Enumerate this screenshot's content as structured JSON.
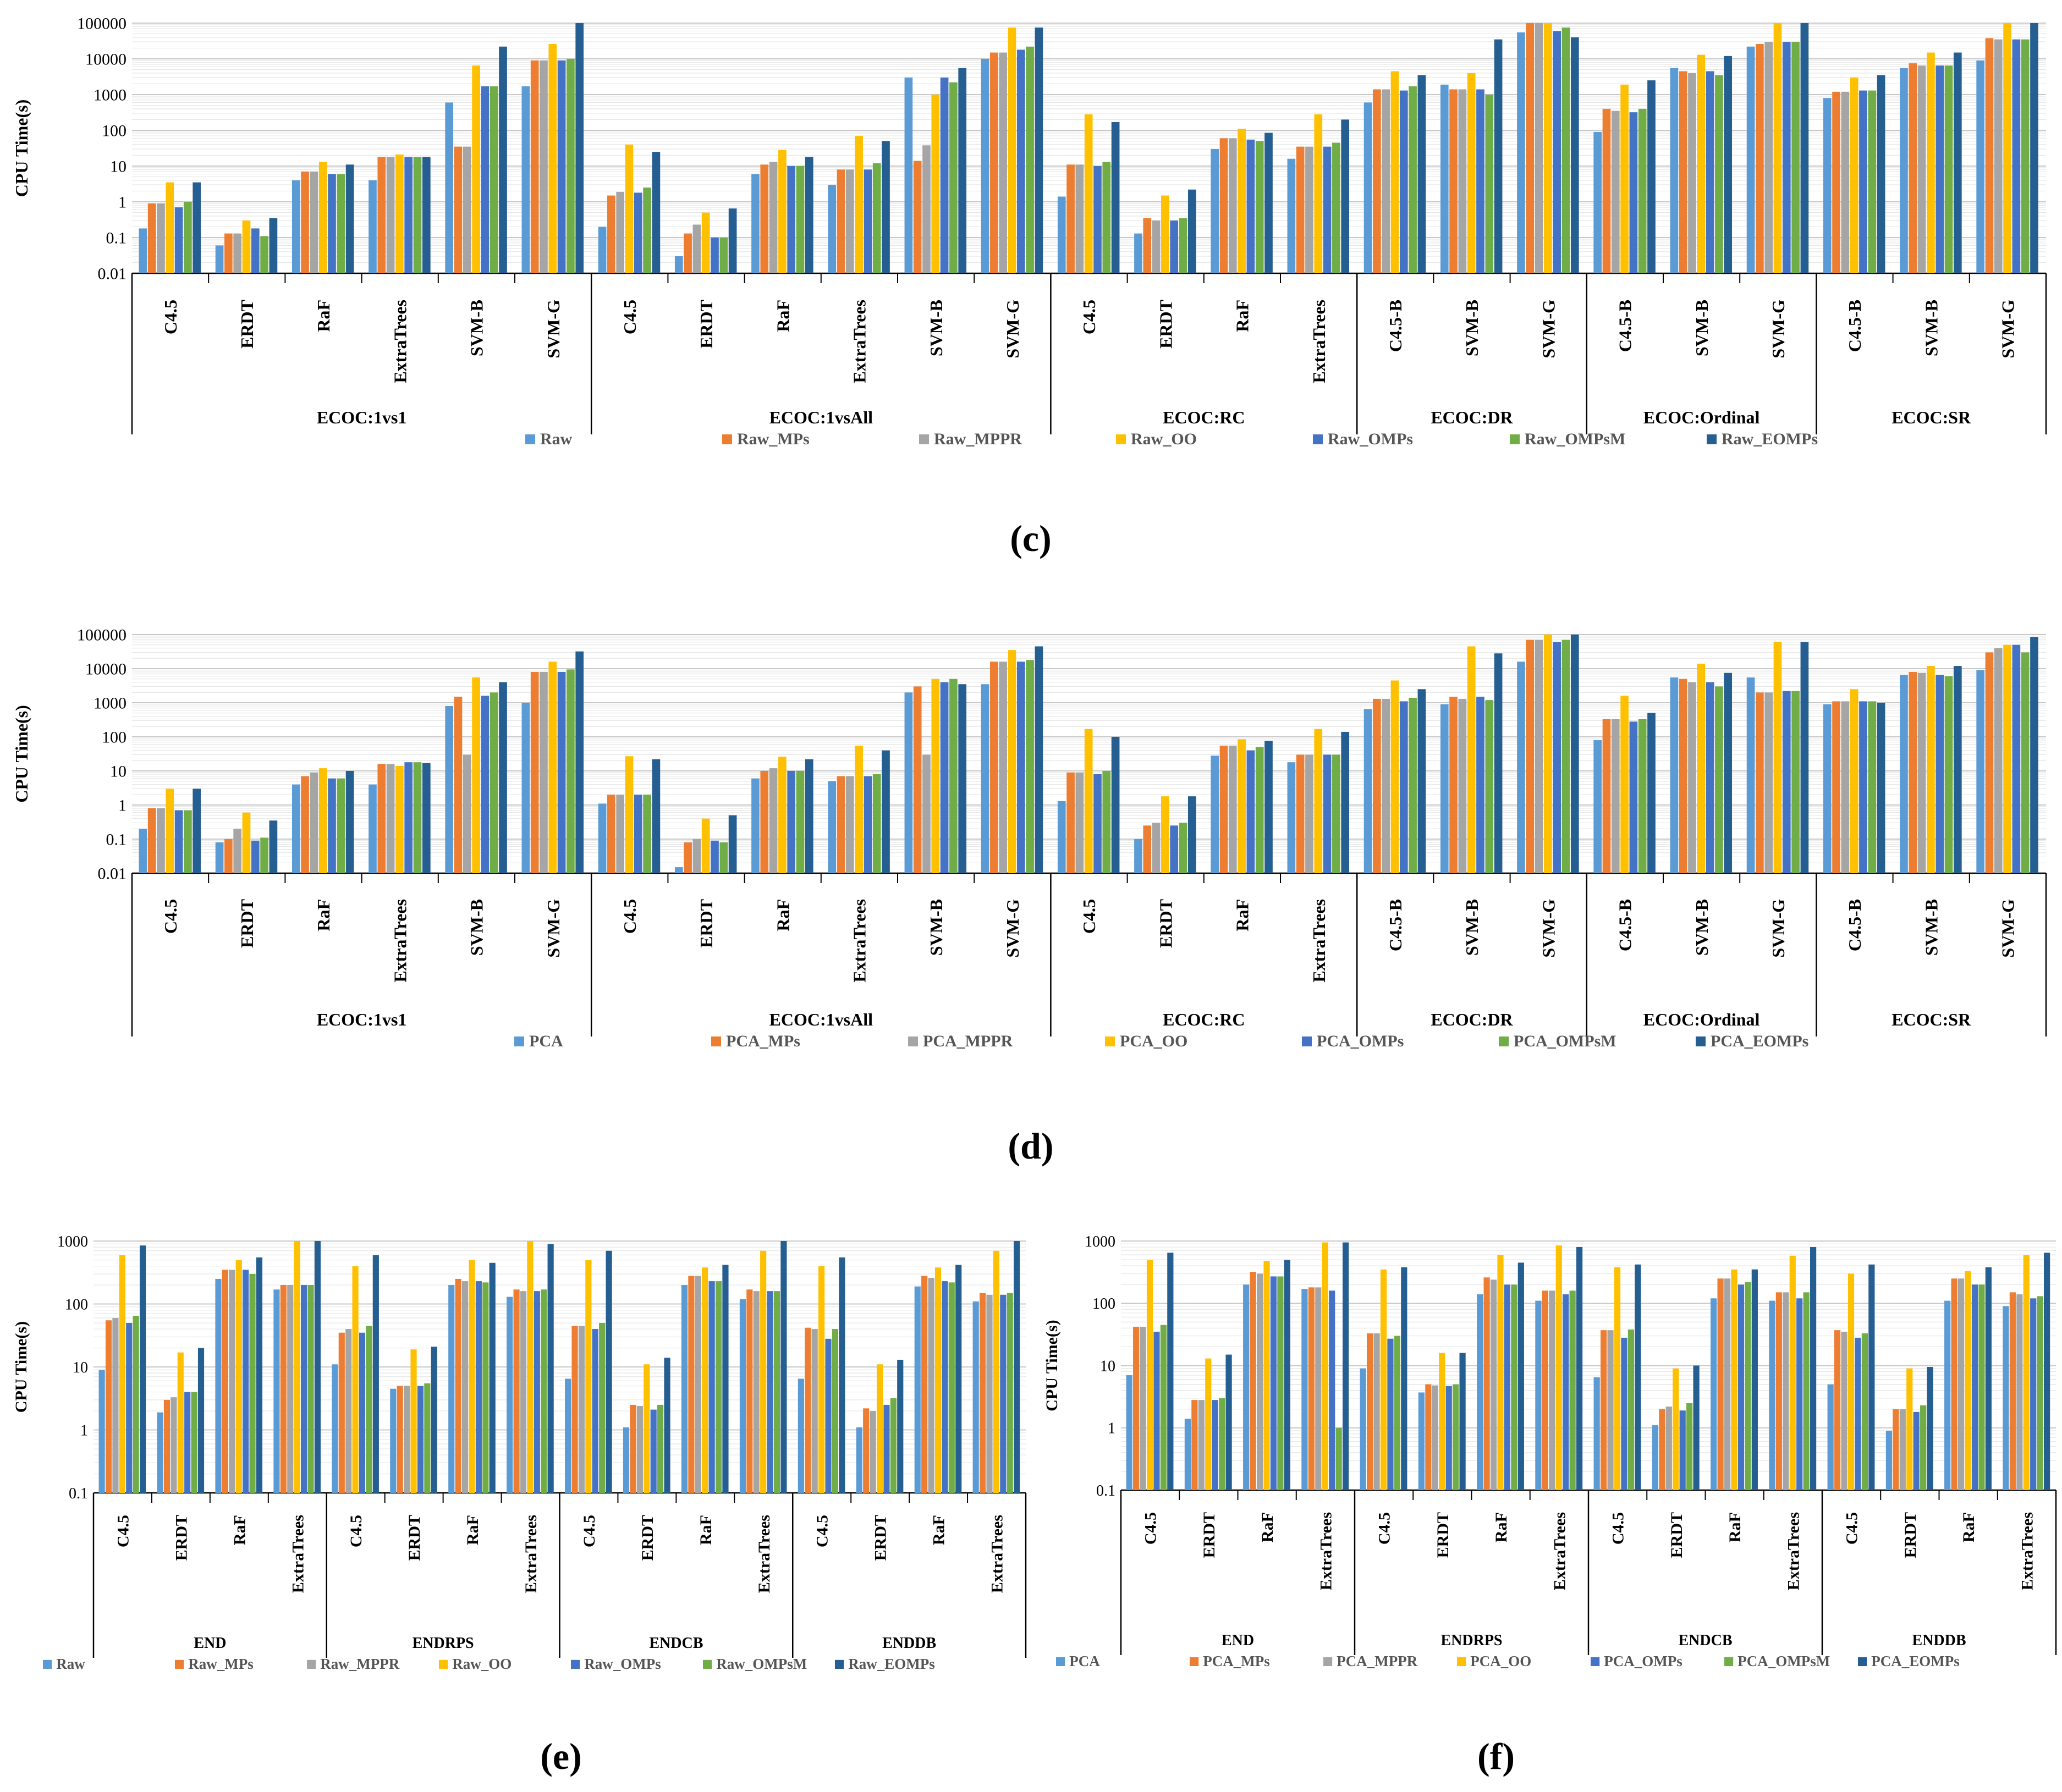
{
  "colors": {
    "Raw": "#5B9BD5",
    "Raw_MPs": "#ED7D31",
    "Raw_MPPR": "#A5A5A5",
    "Raw_OO": "#FFC000",
    "Raw_OMPs": "#4472C4",
    "Raw_OMPsM": "#70AD47",
    "Raw_EOMPs": "#255E91",
    "PCA": "#5B9BD5",
    "PCA_MPs": "#ED7D31",
    "PCA_MPPR": "#A5A5A5",
    "PCA_OO": "#FFC000",
    "PCA_OMPs": "#4472C4",
    "PCA_OMPsM": "#70AD47",
    "PCA_EOMPs": "#255E91"
  },
  "chart_data": [
    {
      "panel": "c",
      "type": "bar",
      "yscale": "log",
      "ylabel": "CPU Time(s)",
      "ylim": [
        0.01,
        100000
      ],
      "yticks": [
        "0.01",
        "0.1",
        "1",
        "10",
        "100",
        "1000",
        "10000",
        "100000"
      ],
      "groups": [
        {
          "label": "ECOC:1vs1",
          "categories": [
            "C4.5",
            "ERDT",
            "RaF",
            "ExtraTrees",
            "SVM-B",
            "SVM-G"
          ]
        },
        {
          "label": "ECOC:1vsAll",
          "categories": [
            "C4.5",
            "ERDT",
            "RaF",
            "ExtraTrees",
            "SVM-B",
            "SVM-G"
          ]
        },
        {
          "label": "ECOC:RC",
          "categories": [
            "C4.5",
            "ERDT",
            "RaF",
            "ExtraTrees"
          ]
        },
        {
          "label": "ECOC:DR",
          "categories": [
            "C4.5-B",
            "SVM-B",
            "SVM-G"
          ]
        },
        {
          "label": "ECOC:Ordinal",
          "categories": [
            "C4.5-B",
            "SVM-B",
            "SVM-G"
          ]
        },
        {
          "label": "ECOC:SR",
          "categories": [
            "C4.5-B",
            "SVM-B",
            "SVM-G"
          ]
        }
      ],
      "legend": [
        "Raw",
        "Raw_MPs",
        "Raw_MPPR",
        "Raw_OO",
        "Raw_OMPs",
        "Raw_OMPsM",
        "Raw_EOMPs"
      ],
      "values": [
        [
          0.18,
          0.9,
          0.9,
          3.5,
          0.7,
          1.0,
          3.5
        ],
        [
          0.06,
          0.13,
          0.13,
          0.3,
          0.18,
          0.11,
          0.35
        ],
        [
          4,
          7,
          7,
          13,
          6,
          6,
          11
        ],
        [
          4,
          18,
          18,
          21,
          18,
          18,
          18
        ],
        [
          600,
          35,
          35,
          6500,
          1700,
          1700,
          22000
        ],
        [
          1700,
          9000,
          9000,
          26000,
          9000,
          10000,
          100000
        ],
        [
          0.2,
          1.5,
          1.9,
          40,
          1.8,
          2.5,
          25
        ],
        [
          0.03,
          0.13,
          0.23,
          0.5,
          0.1,
          0.1,
          0.65
        ],
        [
          6,
          11,
          13,
          28,
          10,
          10,
          18
        ],
        [
          3,
          8,
          8,
          70,
          8,
          12,
          50
        ],
        [
          3000,
          14,
          38,
          1000,
          3000,
          2200,
          5500
        ],
        [
          10000,
          15000,
          15000,
          75000,
          18000,
          22000,
          75000
        ],
        [
          1.4,
          11,
          11,
          280,
          10,
          13,
          170
        ],
        [
          0.13,
          0.35,
          0.3,
          1.5,
          0.3,
          0.35,
          2.2
        ],
        [
          30,
          60,
          60,
          110,
          55,
          50,
          85
        ],
        [
          16,
          35,
          35,
          280,
          35,
          45,
          200
        ],
        [
          600,
          1400,
          1400,
          4500,
          1300,
          1700,
          3500
        ],
        [
          1900,
          1400,
          1400,
          4000,
          1400,
          1000,
          35000
        ],
        [
          55000,
          100000,
          100000,
          100000,
          60000,
          75000,
          40000
        ],
        [
          90,
          400,
          350,
          1900,
          320,
          400,
          2500
        ],
        [
          5500,
          4500,
          4000,
          13000,
          4500,
          3500,
          12000
        ],
        [
          22000,
          26000,
          30000,
          100000,
          30000,
          30000,
          100000
        ],
        [
          800,
          1200,
          1200,
          3000,
          1300,
          1300,
          3500
        ],
        [
          5500,
          7500,
          6500,
          15000,
          6500,
          6500,
          15000
        ],
        [
          9000,
          38000,
          35000,
          100000,
          35000,
          35000,
          100000
        ]
      ],
      "caption": "c"
    },
    {
      "panel": "d",
      "type": "bar",
      "yscale": "log",
      "ylabel": "CPU Time(s)",
      "ylim": [
        0.01,
        100000
      ],
      "yticks": [
        "0.01",
        "0.1",
        "1",
        "10",
        "100",
        "1000",
        "10000",
        "100000"
      ],
      "groups": [
        {
          "label": "ECOC:1vs1",
          "categories": [
            "C4.5",
            "ERDT",
            "RaF",
            "ExtraTrees",
            "SVM-B",
            "SVM-G"
          ]
        },
        {
          "label": "ECOC:1vsAll",
          "categories": [
            "C4.5",
            "ERDT",
            "RaF",
            "ExtraTrees",
            "SVM-B",
            "SVM-G"
          ]
        },
        {
          "label": "ECOC:RC",
          "categories": [
            "C4.5",
            "ERDT",
            "RaF",
            "ExtraTrees"
          ]
        },
        {
          "label": "ECOC:DR",
          "categories": [
            "C4.5-B",
            "SVM-B",
            "SVM-G"
          ]
        },
        {
          "label": "ECOC:Ordinal",
          "categories": [
            "C4.5-B",
            "SVM-B",
            "SVM-G"
          ]
        },
        {
          "label": "ECOC:SR",
          "categories": [
            "C4.5-B",
            "SVM-B",
            "SVM-G"
          ]
        }
      ],
      "legend": [
        "PCA",
        "PCA_MPs",
        "PCA_MPPR",
        "PCA_OO",
        "PCA_OMPs",
        "PCA_OMPsM",
        "PCA_EOMPs"
      ],
      "values": [
        [
          0.2,
          0.8,
          0.8,
          3,
          0.7,
          0.7,
          3
        ],
        [
          0.08,
          0.1,
          0.2,
          0.6,
          0.09,
          0.11,
          0.35
        ],
        [
          4,
          7,
          9,
          12,
          6,
          6,
          10
        ],
        [
          4,
          16,
          16,
          14,
          18,
          18,
          17
        ],
        [
          800,
          1500,
          30,
          5500,
          1600,
          2000,
          4000
        ],
        [
          1000,
          8000,
          8000,
          16000,
          8000,
          9500,
          32000
        ],
        [
          1.1,
          2,
          2,
          27,
          2,
          2,
          22
        ],
        [
          0.015,
          0.08,
          0.1,
          0.4,
          0.09,
          0.08,
          0.5
        ],
        [
          6,
          10,
          12,
          26,
          10,
          10,
          22
        ],
        [
          5,
          7,
          7,
          55,
          7,
          8,
          40
        ],
        [
          2000,
          3000,
          30,
          5000,
          4000,
          5000,
          3500
        ],
        [
          3500,
          16000,
          16000,
          35000,
          16000,
          18000,
          45000
        ],
        [
          1.3,
          9,
          9,
          170,
          8,
          10,
          100
        ],
        [
          0.1,
          0.25,
          0.3,
          1.8,
          0.25,
          0.3,
          1.8
        ],
        [
          28,
          55,
          55,
          85,
          40,
          50,
          75
        ],
        [
          18,
          30,
          30,
          170,
          30,
          30,
          140
        ],
        [
          650,
          1300,
          1300,
          4500,
          1100,
          1400,
          2500
        ],
        [
          900,
          1500,
          1300,
          45000,
          1500,
          1200,
          28000
        ],
        [
          16000,
          70000,
          70000,
          100000,
          60000,
          70000,
          100000
        ],
        [
          80,
          330,
          330,
          1600,
          280,
          330,
          500
        ],
        [
          5500,
          5000,
          4000,
          14000,
          4000,
          3000,
          7500
        ],
        [
          5500,
          2000,
          2000,
          60000,
          2200,
          2200,
          60000
        ],
        [
          900,
          1100,
          1100,
          2500,
          1100,
          1100,
          1000
        ],
        [
          6500,
          8000,
          7500,
          12000,
          6500,
          6000,
          12000
        ],
        [
          9000,
          30000,
          40000,
          50000,
          50000,
          30000,
          85000
        ]
      ],
      "caption": "d"
    },
    {
      "panel": "e",
      "type": "bar",
      "yscale": "log",
      "ylabel": "CPU Time(s)",
      "ylim": [
        0.1,
        1000
      ],
      "yticks": [
        "0.1",
        "1",
        "10",
        "100",
        "1000"
      ],
      "groups": [
        {
          "label": "END",
          "categories": [
            "C4.5",
            "ERDT",
            "RaF",
            "ExtraTrees"
          ]
        },
        {
          "label": "ENDRPS",
          "categories": [
            "C4.5",
            "ERDT",
            "RaF",
            "ExtraTrees"
          ]
        },
        {
          "label": "ENDCB",
          "categories": [
            "C4.5",
            "ERDT",
            "RaF",
            "ExtraTrees"
          ]
        },
        {
          "label": "ENDDB",
          "categories": [
            "C4.5",
            "ERDT",
            "RaF",
            "ExtraTrees"
          ]
        }
      ],
      "legend": [
        "Raw",
        "Raw_MPs",
        "Raw_MPPR",
        "Raw_OO",
        "Raw_OMPs",
        "Raw_OMPsM",
        "Raw_EOMPs"
      ],
      "values": [
        [
          9,
          55,
          60,
          600,
          50,
          65,
          850
        ],
        [
          1.9,
          3,
          3.3,
          17,
          4,
          4,
          20
        ],
        [
          250,
          350,
          350,
          500,
          350,
          300,
          550
        ],
        [
          170,
          200,
          200,
          1000,
          200,
          200,
          1000
        ],
        [
          11,
          35,
          40,
          400,
          35,
          45,
          600
        ],
        [
          4.5,
          5,
          5,
          19,
          5,
          5.5,
          21
        ],
        [
          200,
          250,
          230,
          500,
          230,
          220,
          450
        ],
        [
          130,
          170,
          160,
          1000,
          160,
          170,
          900
        ],
        [
          6.5,
          45,
          45,
          500,
          40,
          50,
          700
        ],
        [
          1.1,
          2.5,
          2.4,
          11,
          2.1,
          2.5,
          14
        ],
        [
          200,
          280,
          280,
          380,
          230,
          230,
          420
        ],
        [
          120,
          170,
          160,
          700,
          160,
          160,
          1000
        ],
        [
          6.5,
          42,
          40,
          400,
          28,
          40,
          550
        ],
        [
          1.1,
          2.2,
          2,
          11,
          2.5,
          3.2,
          13
        ],
        [
          190,
          280,
          260,
          380,
          230,
          220,
          420
        ],
        [
          110,
          150,
          140,
          700,
          140,
          150,
          1000
        ]
      ],
      "caption": "e"
    },
    {
      "panel": "f",
      "type": "bar",
      "yscale": "log",
      "ylabel": "CPU Time(s)",
      "ylim": [
        0.1,
        1000
      ],
      "yticks": [
        "0.1",
        "1",
        "10",
        "100",
        "1000"
      ],
      "groups": [
        {
          "label": "END",
          "categories": [
            "C4.5",
            "ERDT",
            "RaF",
            "ExtraTrees"
          ]
        },
        {
          "label": "ENDRPS",
          "categories": [
            "C4.5",
            "ERDT",
            "RaF",
            "ExtraTrees"
          ]
        },
        {
          "label": "ENDCB",
          "categories": [
            "C4.5",
            "ERDT",
            "RaF",
            "ExtraTrees"
          ]
        },
        {
          "label": "ENDDB",
          "categories": [
            "C4.5",
            "ERDT",
            "RaF",
            "ExtraTrees"
          ]
        }
      ],
      "legend": [
        "PCA",
        "PCA_MPs",
        "PCA_MPPR",
        "PCA_OO",
        "PCA_OMPs",
        "PCA_OMPsM",
        "PCA_EOMPs"
      ],
      "values": [
        [
          7,
          42,
          42,
          500,
          35,
          45,
          650
        ],
        [
          1.4,
          2.8,
          2.8,
          13,
          2.8,
          3,
          15
        ],
        [
          200,
          320,
          300,
          480,
          270,
          270,
          500
        ],
        [
          170,
          180,
          180,
          950,
          160,
          1,
          950
        ],
        [
          9,
          33,
          33,
          350,
          27,
          30,
          380
        ],
        [
          3.7,
          5,
          4.8,
          16,
          4.7,
          5,
          16
        ],
        [
          140,
          260,
          240,
          600,
          200,
          200,
          450
        ],
        [
          110,
          160,
          160,
          850,
          140,
          160,
          800
        ],
        [
          6.5,
          37,
          37,
          380,
          28,
          38,
          420
        ],
        [
          1.1,
          2,
          2.2,
          9,
          1.9,
          2.5,
          10
        ],
        [
          120,
          250,
          250,
          350,
          200,
          220,
          350
        ],
        [
          110,
          150,
          150,
          580,
          120,
          150,
          800
        ],
        [
          5,
          37,
          35,
          300,
          28,
          33,
          420
        ],
        [
          0.9,
          2,
          2,
          9,
          1.8,
          2.3,
          9.5
        ],
        [
          110,
          250,
          250,
          330,
          200,
          200,
          380
        ],
        [
          90,
          150,
          140,
          600,
          120,
          130,
          650
        ]
      ],
      "caption": "f"
    }
  ]
}
